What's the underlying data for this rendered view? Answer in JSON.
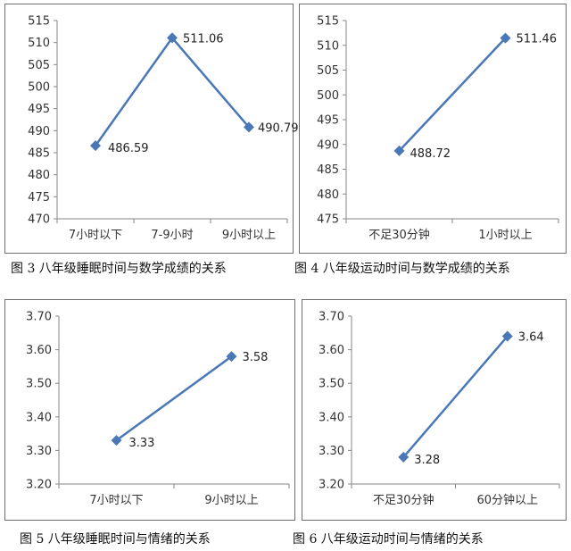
{
  "chart_data": [
    {
      "type": "line",
      "categories": [
        "7小时以下",
        "7-9小时",
        "9小时以上"
      ],
      "values": [
        486.59,
        511.06,
        490.79
      ],
      "data_labels": [
        "486.59",
        "511.06",
        "490.79"
      ],
      "ylim": [
        470,
        515
      ],
      "yticks": [
        "470",
        "475",
        "480",
        "485",
        "490",
        "495",
        "500",
        "505",
        "510",
        "515"
      ],
      "grid": false,
      "color": "#4a78b7"
    },
    {
      "type": "line",
      "categories": [
        "不足30分钟",
        "1小时以上"
      ],
      "values": [
        488.72,
        511.46
      ],
      "data_labels": [
        "488.72",
        "511.46"
      ],
      "ylim": [
        475,
        515
      ],
      "yticks": [
        "475",
        "480",
        "485",
        "490",
        "495",
        "500",
        "505",
        "510",
        "515"
      ],
      "grid": false,
      "color": "#4a78b7"
    },
    {
      "type": "line",
      "categories": [
        "7小时以下",
        "9小时以上"
      ],
      "values": [
        3.33,
        3.58
      ],
      "data_labels": [
        "3.33",
        "3.58"
      ],
      "ylim": [
        3.2,
        3.7
      ],
      "yticks": [
        "3.20",
        "3.30",
        "3.40",
        "3.50",
        "3.60",
        "3.70"
      ],
      "grid": false,
      "color": "#4a78b7"
    },
    {
      "type": "line",
      "categories": [
        "不足30分钟",
        "60分钟以上"
      ],
      "values": [
        3.28,
        3.64
      ],
      "data_labels": [
        "3.28",
        "3.64"
      ],
      "ylim": [
        3.2,
        3.7
      ],
      "yticks": [
        "3.20",
        "3.30",
        "3.40",
        "3.50",
        "3.60",
        "3.70"
      ],
      "grid": false,
      "color": "#4a78b7"
    }
  ],
  "captions": {
    "fig3": "图 3  八年级睡眠时间与数学成绩的关系",
    "fig4": "图 4  八年级运动时间与数学成绩的关系",
    "fig5": "图 5   八年级睡眠时间与情绪的关系",
    "fig6": "图 6  八年级运动时间与情绪的关系"
  }
}
